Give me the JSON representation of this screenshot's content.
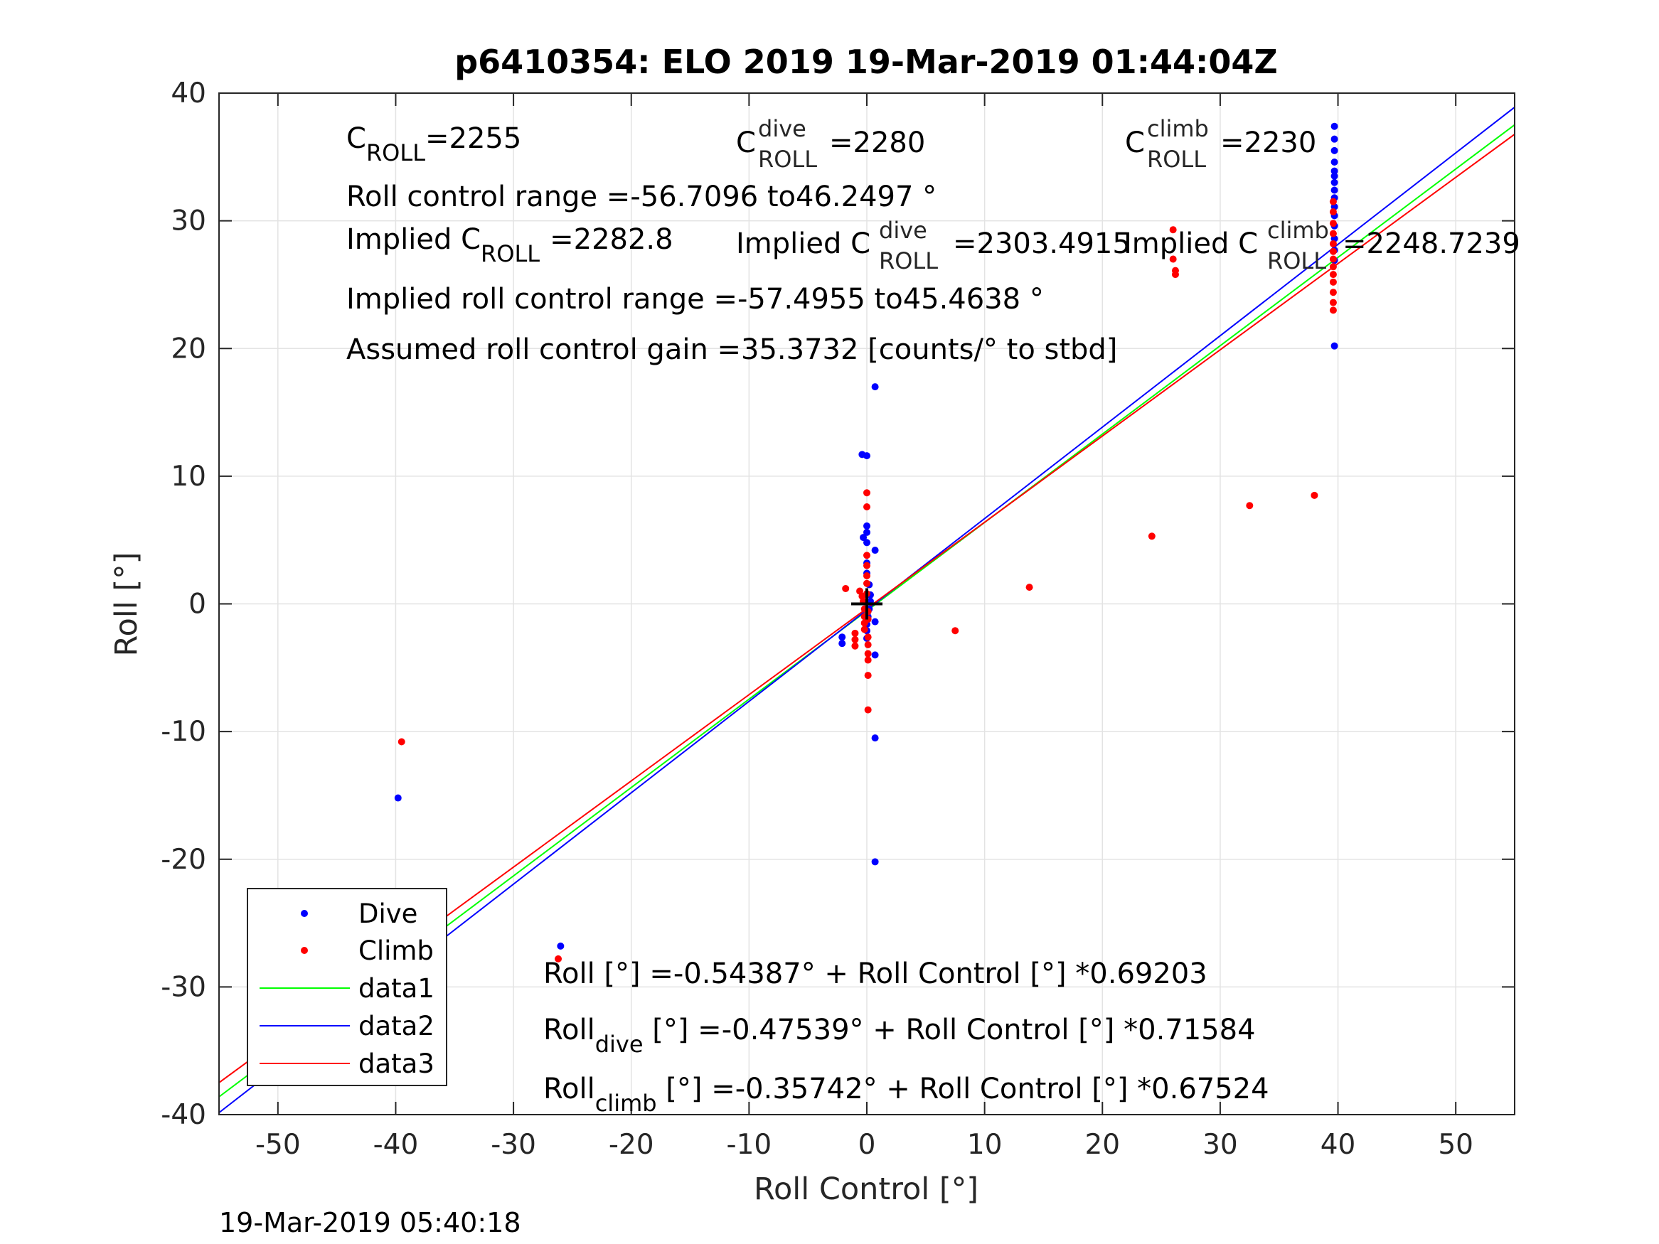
{
  "chart_data": {
    "type": "scatter",
    "title": "p6410354: ELO 2019 19-Mar-2019 01:44:04Z",
    "xlabel": "Roll Control [°]",
    "ylabel": "Roll [°]",
    "xlim": [
      -55,
      55
    ],
    "ylim": [
      -40,
      40
    ],
    "xticks": [
      -50,
      -40,
      -30,
      -20,
      -10,
      0,
      10,
      20,
      30,
      40,
      50
    ],
    "yticks": [
      -40,
      -30,
      -20,
      -10,
      0,
      10,
      20,
      30,
      40
    ],
    "grid": true,
    "legend_position": "bottom-left",
    "timestamp": "19-Mar-2019 05:40:18",
    "series": [
      {
        "name": "Dive",
        "kind": "points",
        "color": "#0000ff",
        "points": [
          [
            -39.8,
            -15.2
          ],
          [
            -39.8,
            -23.6
          ],
          [
            -39.8,
            -25.2
          ],
          [
            -39.8,
            -25.8
          ],
          [
            -39.8,
            -26.5
          ],
          [
            -39.8,
            -27.1
          ],
          [
            -39.8,
            -27.7
          ],
          [
            -39.8,
            -28.3
          ],
          [
            -39.8,
            -28.8
          ],
          [
            -39.8,
            -29.3
          ],
          [
            -26.0,
            -26.8
          ],
          [
            -2.1,
            -3.1
          ],
          [
            -2.1,
            -2.6
          ],
          [
            -0.3,
            5.2
          ],
          [
            -0.4,
            11.7
          ],
          [
            0.0,
            11.6
          ],
          [
            0.0,
            6.1
          ],
          [
            0.0,
            5.6
          ],
          [
            0.0,
            4.8
          ],
          [
            0.0,
            3.2
          ],
          [
            0.0,
            2.4
          ],
          [
            0.2,
            1.5
          ],
          [
            0.3,
            0.7
          ],
          [
            0.3,
            0.2
          ],
          [
            0.2,
            -0.4
          ],
          [
            0.1,
            -1.0
          ],
          [
            0.0,
            -1.6
          ],
          [
            0.0,
            -2.1
          ],
          [
            0.0,
            -2.7
          ],
          [
            0.7,
            17.0
          ],
          [
            0.7,
            4.2
          ],
          [
            0.7,
            -1.4
          ],
          [
            0.7,
            -4.0
          ],
          [
            0.7,
            -10.5
          ],
          [
            0.7,
            -20.2
          ],
          [
            39.7,
            37.4
          ],
          [
            39.7,
            36.4
          ],
          [
            39.7,
            35.5
          ],
          [
            39.7,
            34.6
          ],
          [
            39.7,
            33.9
          ],
          [
            39.7,
            33.5
          ],
          [
            39.7,
            33.0
          ],
          [
            39.7,
            32.4
          ],
          [
            39.7,
            31.8
          ],
          [
            39.7,
            31.1
          ],
          [
            39.7,
            30.4
          ],
          [
            39.7,
            29.6
          ],
          [
            39.7,
            28.6
          ],
          [
            39.7,
            27.7
          ],
          [
            39.7,
            26.9
          ],
          [
            39.7,
            20.2
          ]
        ]
      },
      {
        "name": "Climb",
        "kind": "points",
        "color": "#ff0000",
        "points": [
          [
            -39.5,
            -10.8
          ],
          [
            -39.5,
            -24.9
          ],
          [
            -39.5,
            -25.6
          ],
          [
            -39.5,
            -26.3
          ],
          [
            -39.5,
            -26.9
          ],
          [
            -39.5,
            -27.4
          ],
          [
            -39.5,
            -27.9
          ],
          [
            -39.5,
            -28.5
          ],
          [
            -39.5,
            -29.0
          ],
          [
            -26.2,
            -27.8
          ],
          [
            -1.8,
            1.2
          ],
          [
            -1.0,
            -2.3
          ],
          [
            -1.0,
            -2.8
          ],
          [
            -1.0,
            -3.3
          ],
          [
            -0.6,
            1.0
          ],
          [
            -0.4,
            0.6
          ],
          [
            -0.3,
            0.2
          ],
          [
            -0.2,
            -0.4
          ],
          [
            -0.2,
            -1.0
          ],
          [
            -0.2,
            -1.5
          ],
          [
            -0.2,
            -2.0
          ],
          [
            0.0,
            8.7
          ],
          [
            0.0,
            7.6
          ],
          [
            0.0,
            3.8
          ],
          [
            0.0,
            3.0
          ],
          [
            0.0,
            2.2
          ],
          [
            0.0,
            1.6
          ],
          [
            0.0,
            0.8
          ],
          [
            0.1,
            -0.6
          ],
          [
            0.1,
            -1.2
          ],
          [
            0.1,
            -2.6
          ],
          [
            0.1,
            -3.2
          ],
          [
            0.1,
            -3.9
          ],
          [
            0.1,
            -4.4
          ],
          [
            0.1,
            -5.6
          ],
          [
            0.1,
            -8.3
          ],
          [
            7.5,
            -2.1
          ],
          [
            13.8,
            1.3
          ],
          [
            24.2,
            5.3
          ],
          [
            26.0,
            29.3
          ],
          [
            26.0,
            27.0
          ],
          [
            26.2,
            26.1
          ],
          [
            26.2,
            25.8
          ],
          [
            32.5,
            7.7
          ],
          [
            38.0,
            8.5
          ],
          [
            39.6,
            31.5
          ],
          [
            39.6,
            30.7
          ],
          [
            39.6,
            29.8
          ],
          [
            39.6,
            29.0
          ],
          [
            39.6,
            28.2
          ],
          [
            39.6,
            27.6
          ],
          [
            39.6,
            27.0
          ],
          [
            39.6,
            26.4
          ],
          [
            39.6,
            25.8
          ],
          [
            39.6,
            25.2
          ],
          [
            39.6,
            24.4
          ],
          [
            39.6,
            23.6
          ],
          [
            39.6,
            23.0
          ]
        ]
      },
      {
        "name": "data1",
        "kind": "line",
        "color": "#00ff00",
        "x": [
          -55,
          55
        ],
        "intercept": -0.54387,
        "slope": 0.69203
      },
      {
        "name": "data2",
        "kind": "line",
        "color": "#0000ff",
        "x": [
          -55,
          55
        ],
        "intercept": -0.47539,
        "slope": 0.71584
      },
      {
        "name": "data3",
        "kind": "line",
        "color": "#ff0000",
        "x": [
          -55,
          55
        ],
        "intercept": -0.35742,
        "slope": 0.67524
      }
    ],
    "origin_marker": "+"
  },
  "annotations": {
    "c_roll": {
      "main": "C",
      "sub": "ROLL",
      "val": "=2255"
    },
    "c_dive": {
      "main": "C",
      "sup": "dive",
      "sub": "ROLL",
      "val": "=2280"
    },
    "c_climb": {
      "main": "C",
      "sup": "climb",
      "sub": "ROLL",
      "val": "=2230"
    },
    "range": "Roll control range =-56.7096 to46.2497 °",
    "implied_c": {
      "pre": "Implied C",
      "sub": "ROLL",
      "val": "=2282.8"
    },
    "implied_dive": {
      "pre": "Implied C",
      "sup": "dive",
      "sub": "ROLL",
      "val": "=2303.4915"
    },
    "implied_climb": {
      "pre": "Implied C",
      "sup": "climb",
      "sub": "ROLL",
      "val": "=2248.7239"
    },
    "implied_range": "Implied roll control range =-57.4955 to45.4638 °",
    "gain": "Assumed roll control gain =35.3732 [counts/° to stbd]",
    "fit_all": "Roll [°] =-0.54387° + Roll Control [°] *0.69203",
    "fit_dive": {
      "pre": "Roll",
      "sub": "dive",
      "post": " [°] =-0.47539° + Roll Control [°] *0.71584"
    },
    "fit_climb": {
      "pre": "Roll",
      "sub": "climb",
      "post": " [°] =-0.35742° + Roll Control [°] *0.67524"
    }
  }
}
